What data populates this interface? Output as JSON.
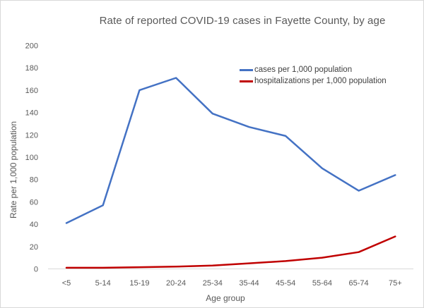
{
  "chart_data": {
    "type": "line",
    "title": "Rate of reported COVID-19 cases in Fayette County, by age",
    "xlabel": "Age group",
    "ylabel": "Rate per 1,000 population",
    "categories": [
      "<5",
      "5-14",
      "15-19",
      "20-24",
      "25-34",
      "35-44",
      "45-54",
      "55-64",
      "65-74",
      "75+"
    ],
    "series": [
      {
        "name": "cases per 1,000 population",
        "color": "#4472C4",
        "values": [
          41,
          57,
          160,
          171,
          139,
          127,
          119,
          90,
          70,
          84
        ]
      },
      {
        "name": "hospitalizations per 1,000 population",
        "color": "#C00000",
        "values": [
          1,
          1,
          1.5,
          2,
          3,
          5,
          7,
          10,
          15,
          29
        ]
      }
    ],
    "yticks": [
      0,
      20,
      40,
      60,
      80,
      100,
      120,
      140,
      160,
      180,
      200
    ],
    "ylim": [
      0,
      200
    ],
    "grid": false,
    "legend_position": "top-right"
  },
  "colors": {
    "axis_line": "#d9d9d9",
    "frame_border": "#d9d9d9",
    "tick_text": "#595959"
  }
}
